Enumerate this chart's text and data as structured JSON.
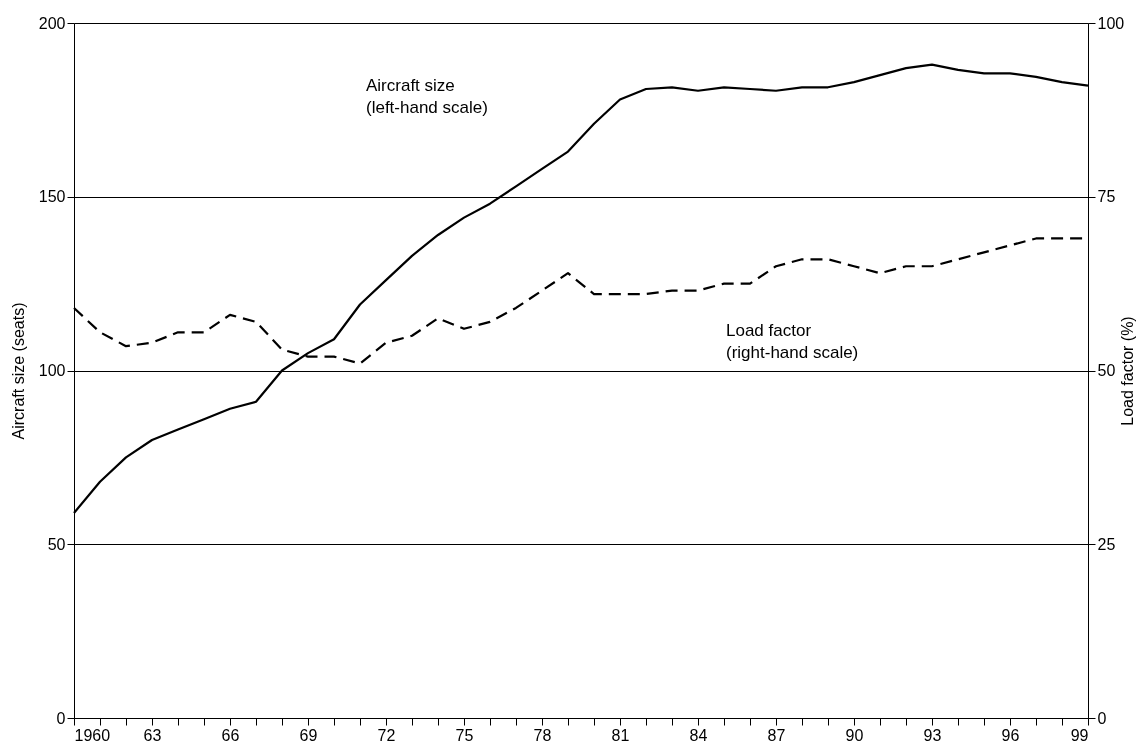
{
  "chart_data": {
    "type": "line",
    "x": [
      1960,
      1961,
      1962,
      1963,
      1964,
      1965,
      1966,
      1967,
      1968,
      1969,
      1970,
      1971,
      1972,
      1973,
      1974,
      1975,
      1976,
      1977,
      1978,
      1979,
      1980,
      1981,
      1982,
      1983,
      1984,
      1985,
      1986,
      1987,
      1988,
      1989,
      1990,
      1991,
      1992,
      1993,
      1994,
      1995,
      1996,
      1997,
      1998,
      1999
    ],
    "ylabel": "Aircraft size (seats)",
    "y2label": "Load factor (%)",
    "series": [
      {
        "color": "#000000",
        "line_style": "solid",
        "values": [
          59,
          68,
          75,
          80,
          83,
          86,
          89,
          91,
          100,
          105,
          109,
          119,
          126,
          133,
          139,
          144,
          148,
          153,
          158,
          163,
          171,
          178,
          181,
          181.5,
          180.5,
          181.5,
          181,
          180.5,
          181.5,
          181.5,
          183,
          185,
          187,
          188,
          186.5,
          185.5,
          185.5,
          184.5,
          183,
          182
        ]
      },
      {
        "color": "#000000",
        "line_style": "dashed",
        "axis": "y2",
        "values": [
          59,
          55.5,
          53.5,
          54,
          55.5,
          55.5,
          58,
          57,
          53,
          52,
          52,
          51,
          54,
          55,
          57.5,
          56,
          57,
          59,
          61.5,
          64,
          61,
          61,
          61,
          61.5,
          61.5,
          62.5,
          62.5,
          65,
          66,
          66,
          65,
          64,
          65,
          65,
          66,
          67,
          68,
          69,
          69,
          69
        ]
      }
    ],
    "xlim": [
      1960,
      1999
    ],
    "xticks": [
      1960,
      {
        "value": 1961,
        "label": null
      },
      {
        "value": 1962,
        "label": null
      },
      {
        "value": 1963,
        "label": "63"
      },
      {
        "value": 1964,
        "label": null
      },
      {
        "value": 1965,
        "label": null
      },
      {
        "value": 1966,
        "label": "66"
      },
      {
        "value": 1967,
        "label": null
      },
      {
        "value": 1968,
        "label": null
      },
      {
        "value": 1969,
        "label": "69"
      },
      {
        "value": 1970,
        "label": null
      },
      {
        "value": 1971,
        "label": null
      },
      {
        "value": 1972,
        "label": "72"
      },
      {
        "value": 1973,
        "label": null
      },
      {
        "value": 1974,
        "label": null
      },
      {
        "value": 1975,
        "label": "75"
      },
      {
        "value": 1976,
        "label": null
      },
      {
        "value": 1977,
        "label": null
      },
      {
        "value": 1978,
        "label": "78"
      },
      {
        "value": 1979,
        "label": null
      },
      {
        "value": 1980,
        "label": null
      },
      {
        "value": 1981,
        "label": "81"
      },
      {
        "value": 1982,
        "label": null
      },
      {
        "value": 1983,
        "label": null
      },
      {
        "value": 1984,
        "label": "84"
      },
      {
        "value": 1985,
        "label": null
      },
      {
        "value": 1986,
        "label": null
      },
      {
        "value": 1987,
        "label": "87"
      },
      {
        "value": 1988,
        "label": null
      },
      {
        "value": 1989,
        "label": null
      },
      {
        "value": 1990,
        "label": "90"
      },
      {
        "value": 1991,
        "label": null
      },
      {
        "value": 1992,
        "label": null
      },
      {
        "value": 1993,
        "label": "93"
      },
      {
        "value": 1994,
        "label": null
      },
      {
        "value": 1995,
        "label": null
      },
      {
        "value": 1996,
        "label": "96"
      },
      {
        "value": 1997,
        "label": null
      },
      {
        "value": 1998,
        "label": null
      },
      {
        "value": 1999,
        "label": "99"
      }
    ],
    "ylim": [
      0,
      200
    ],
    "yticks": [
      0,
      50,
      100,
      150,
      200
    ],
    "y2lim": [
      0,
      100
    ],
    "y2ticks": [
      0,
      25,
      50,
      75,
      100
    ],
    "grid": "y",
    "marker": "none",
    "annotations": [
      "Aircraft size\n(left-hand scale)",
      "Load factor\n(right-hand scale)"
    ]
  }
}
